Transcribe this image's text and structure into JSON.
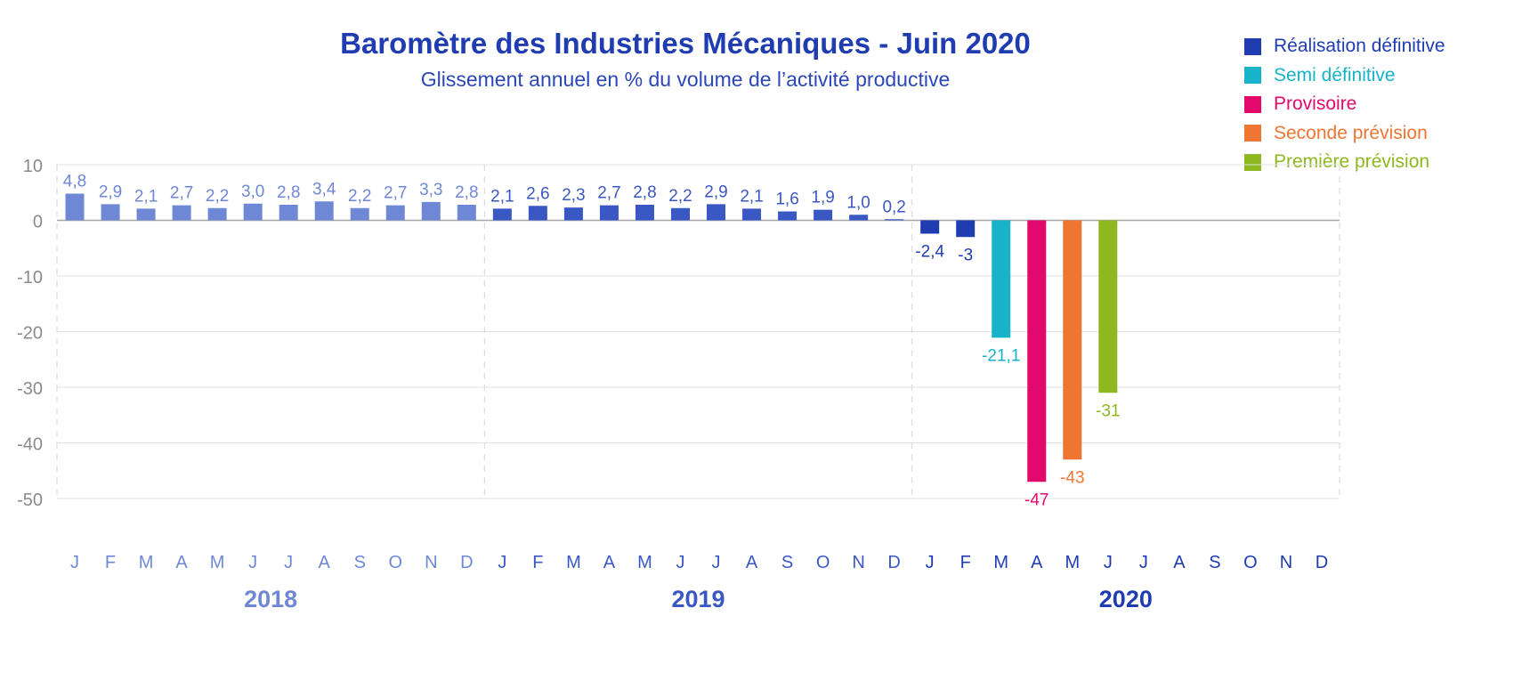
{
  "chart_data": {
    "type": "bar",
    "title": "Baromètre des Industries Mécaniques - Juin 2020",
    "subtitle": "Glissement annuel en % du volume de l’activité productive",
    "y_ticks": [
      "10",
      "0",
      "-10",
      "-20",
      "-30",
      "-40",
      "-50"
    ],
    "ylim": [
      -50,
      10
    ],
    "grid": true,
    "legend_position": "top-right",
    "legend": [
      {
        "key": "definitive",
        "label": "Réalisation définitive",
        "color": "#1f3cb0"
      },
      {
        "key": "semi",
        "label": "Semi définitive",
        "color": "#17b3c9"
      },
      {
        "key": "provisoire",
        "label": "Provisoire",
        "color": "#e3086c"
      },
      {
        "key": "seconde",
        "label": "Seconde prévision",
        "color": "#ee7632"
      },
      {
        "key": "premiere",
        "label": "Première prévision",
        "color": "#8db81f"
      }
    ],
    "month_labels": [
      "J",
      "F",
      "M",
      "A",
      "M",
      "J",
      "J",
      "A",
      "S",
      "O",
      "N",
      "D"
    ],
    "years": [
      {
        "label": "2018",
        "color": "#6f88d6"
      },
      {
        "label": "2019",
        "color": "#3a58c4"
      },
      {
        "label": "2020",
        "color": "#1f3cb0"
      }
    ],
    "bars": [
      {
        "value": 4.8,
        "label": "4,8",
        "color": "#6f88d6"
      },
      {
        "value": 2.9,
        "label": "2,9",
        "color": "#6f88d6"
      },
      {
        "value": 2.1,
        "label": "2,1",
        "color": "#6f88d6"
      },
      {
        "value": 2.7,
        "label": "2,7",
        "color": "#6f88d6"
      },
      {
        "value": 2.2,
        "label": "2,2",
        "color": "#6f88d6"
      },
      {
        "value": 3.0,
        "label": "3,0",
        "color": "#6f88d6"
      },
      {
        "value": 2.8,
        "label": "2,8",
        "color": "#6f88d6"
      },
      {
        "value": 3.4,
        "label": "3,4",
        "color": "#6f88d6"
      },
      {
        "value": 2.2,
        "label": "2,2",
        "color": "#6f88d6"
      },
      {
        "value": 2.7,
        "label": "2,7",
        "color": "#6f88d6"
      },
      {
        "value": 3.3,
        "label": "3,3",
        "color": "#6f88d6"
      },
      {
        "value": 2.8,
        "label": "2,8",
        "color": "#6f88d6"
      },
      {
        "value": 2.1,
        "label": "2,1",
        "color": "#3a58c4"
      },
      {
        "value": 2.6,
        "label": "2,6",
        "color": "#3a58c4"
      },
      {
        "value": 2.3,
        "label": "2,3",
        "color": "#3a58c4"
      },
      {
        "value": 2.7,
        "label": "2,7",
        "color": "#3a58c4"
      },
      {
        "value": 2.8,
        "label": "2,8",
        "color": "#3a58c4"
      },
      {
        "value": 2.2,
        "label": "2,2",
        "color": "#3a58c4"
      },
      {
        "value": 2.9,
        "label": "2,9",
        "color": "#3a58c4"
      },
      {
        "value": 2.1,
        "label": "2,1",
        "color": "#3a58c4"
      },
      {
        "value": 1.6,
        "label": "1,6",
        "color": "#3a58c4"
      },
      {
        "value": 1.9,
        "label": "1,9",
        "color": "#3a58c4"
      },
      {
        "value": 1.0,
        "label": "1,0",
        "color": "#3a58c4"
      },
      {
        "value": 0.2,
        "label": "0,2",
        "color": "#3a58c4"
      },
      {
        "value": -2.4,
        "label": "-2,4",
        "color": "#1f3cb0"
      },
      {
        "value": -3,
        "label": "-3",
        "color": "#1f3cb0"
      },
      {
        "value": -21.1,
        "label": "-21,1",
        "color": "#17b3c9"
      },
      {
        "value": -47,
        "label": "-47",
        "color": "#e3086c"
      },
      {
        "value": -43,
        "label": "-43",
        "color": "#ee7632"
      },
      {
        "value": -31,
        "label": "-31",
        "color": "#8db81f"
      },
      {
        "value": null,
        "label": "",
        "color": "#1f3cb0"
      },
      {
        "value": null,
        "label": "",
        "color": "#1f3cb0"
      },
      {
        "value": null,
        "label": "",
        "color": "#1f3cb0"
      },
      {
        "value": null,
        "label": "",
        "color": "#1f3cb0"
      },
      {
        "value": null,
        "label": "",
        "color": "#1f3cb0"
      },
      {
        "value": null,
        "label": "",
        "color": "#1f3cb0"
      }
    ]
  }
}
